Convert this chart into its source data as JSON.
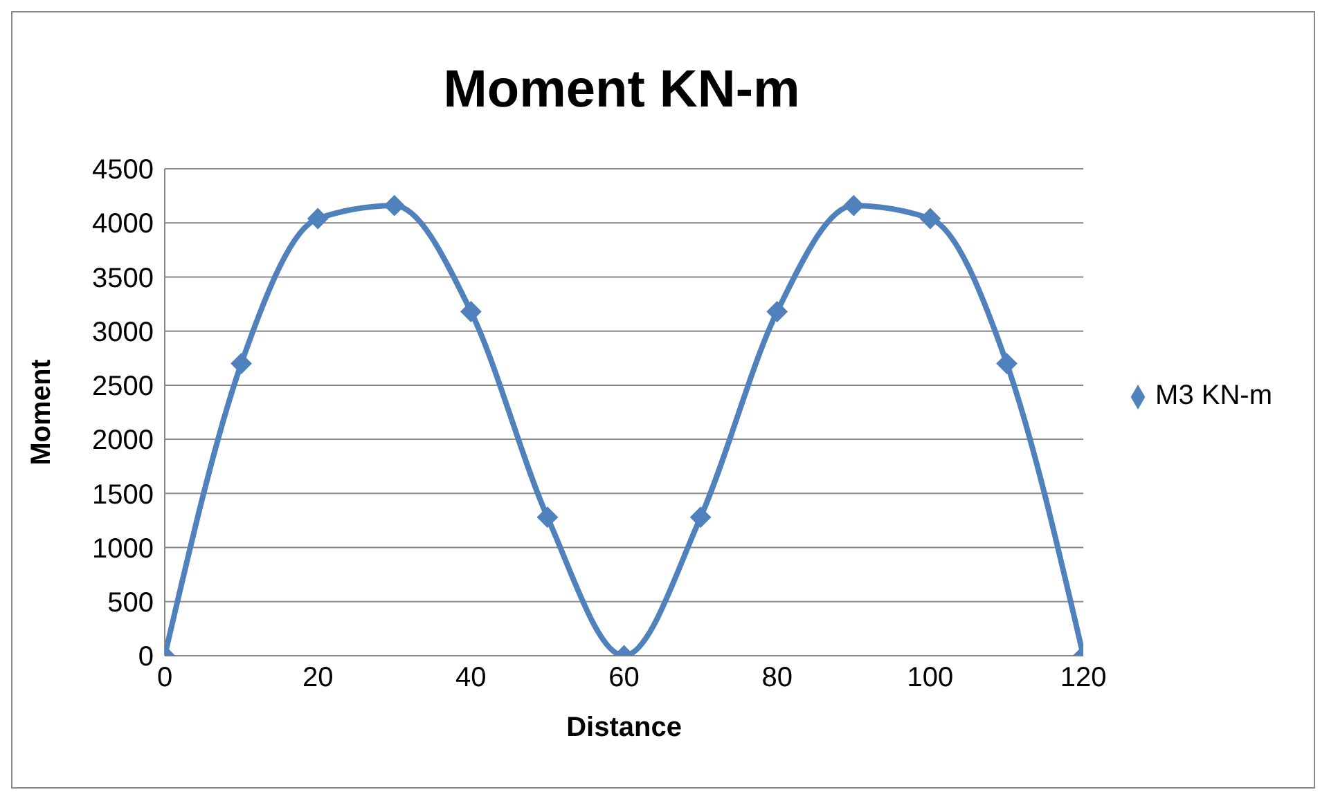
{
  "chart_data": {
    "type": "line",
    "title": "Moment KN-m",
    "xlabel": "Distance",
    "ylabel": "Moment",
    "x": [
      0,
      10,
      20,
      30,
      40,
      50,
      60,
      70,
      80,
      90,
      100,
      110,
      120
    ],
    "series": [
      {
        "name": "M3 KN-m",
        "color": "#4f81bd",
        "values": [
          0,
          2700,
          4040,
          4160,
          3180,
          1280,
          0,
          1280,
          3180,
          4160,
          4040,
          2700,
          0
        ]
      }
    ],
    "xlim": [
      0,
      120
    ],
    "xticks": [
      0,
      20,
      40,
      60,
      80,
      100,
      120
    ],
    "ylim": [
      0,
      4500
    ],
    "yticks": [
      0,
      500,
      1000,
      1500,
      2000,
      2500,
      3000,
      3500,
      4000,
      4500
    ],
    "grid": "y",
    "legend": "right",
    "marker": "diamond",
    "line_style": "solid"
  }
}
